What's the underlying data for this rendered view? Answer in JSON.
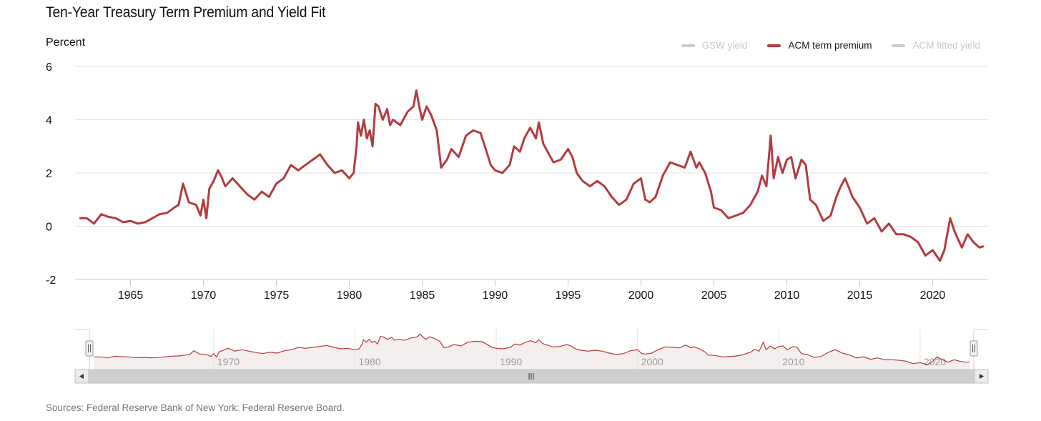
{
  "title": "Ten-Year Treasury Term Premium and Yield Fit",
  "y_unit": "Percent",
  "legend": [
    {
      "label": "GSW yield",
      "active": false,
      "color": "#cccccc"
    },
    {
      "label": "ACM term premium",
      "active": true,
      "color": "#b33b3f"
    },
    {
      "label": "ACM fitted yield",
      "active": false,
      "color": "#cccccc"
    }
  ],
  "source": "Sources: Federal Reserve Bank of New York: Federal Reserve Board.",
  "colors": {
    "series": "#b33b3f",
    "grid": "#e3e3e3",
    "axis": "#c6c9dc",
    "navigator_fill": "#f5eeee",
    "scroll_track": "#cfcfcf"
  },
  "chart_data": {
    "type": "line",
    "title": "Ten-Year Treasury Term Premium and Yield Fit",
    "ylabel": "Percent",
    "xlabel": "",
    "xlim": [
      1961.2,
      2023.8
    ],
    "ylim": [
      -2,
      6
    ],
    "yticks": [
      -2,
      0,
      2,
      4,
      6
    ],
    "ytick_labels": [
      "-2",
      "0",
      "2",
      "4",
      "6"
    ],
    "xticks": [
      1965,
      1970,
      1975,
      1980,
      1985,
      1990,
      1995,
      2000,
      2005,
      2010,
      2015,
      2020
    ],
    "xtick_labels": [
      "1965",
      "1970",
      "1975",
      "1980",
      "1985",
      "1990",
      "1995",
      "2000",
      "2005",
      "2010",
      "2015",
      "2020"
    ],
    "navigator_ticks": [
      1970,
      1980,
      1990,
      2000,
      2010,
      2020
    ],
    "navigator_tick_labels": [
      "1970",
      "1980",
      "1990",
      "2000",
      "2010",
      "2020"
    ],
    "series": [
      {
        "name": "ACM term premium",
        "points": [
          [
            1961.5,
            0.3
          ],
          [
            1962,
            0.3
          ],
          [
            1962.5,
            0.1
          ],
          [
            1963,
            0.45
          ],
          [
            1963.5,
            0.35
          ],
          [
            1964,
            0.3
          ],
          [
            1964.5,
            0.15
          ],
          [
            1965,
            0.2
          ],
          [
            1965.5,
            0.1
          ],
          [
            1966,
            0.15
          ],
          [
            1966.5,
            0.3
          ],
          [
            1967,
            0.45
          ],
          [
            1967.5,
            0.5
          ],
          [
            1968,
            0.7
          ],
          [
            1968.3,
            0.8
          ],
          [
            1968.6,
            1.6
          ],
          [
            1969,
            0.9
          ],
          [
            1969.5,
            0.8
          ],
          [
            1969.8,
            0.4
          ],
          [
            1970,
            1.0
          ],
          [
            1970.2,
            0.3
          ],
          [
            1970.4,
            1.4
          ],
          [
            1970.7,
            1.7
          ],
          [
            1971,
            2.1
          ],
          [
            1971.2,
            1.9
          ],
          [
            1971.5,
            1.5
          ],
          [
            1972,
            1.8
          ],
          [
            1972.5,
            1.5
          ],
          [
            1973,
            1.2
          ],
          [
            1973.5,
            1.0
          ],
          [
            1974,
            1.3
          ],
          [
            1974.5,
            1.1
          ],
          [
            1975,
            1.6
          ],
          [
            1975.5,
            1.8
          ],
          [
            1976,
            2.3
          ],
          [
            1976.5,
            2.1
          ],
          [
            1977,
            2.3
          ],
          [
            1977.5,
            2.5
          ],
          [
            1978,
            2.7
          ],
          [
            1978.5,
            2.3
          ],
          [
            1979,
            2.0
          ],
          [
            1979.5,
            2.1
          ],
          [
            1980,
            1.8
          ],
          [
            1980.3,
            2.0
          ],
          [
            1980.5,
            3.0
          ],
          [
            1980.6,
            3.9
          ],
          [
            1980.8,
            3.4
          ],
          [
            1981,
            4.0
          ],
          [
            1981.2,
            3.3
          ],
          [
            1981.4,
            3.6
          ],
          [
            1981.6,
            3.0
          ],
          [
            1981.8,
            4.6
          ],
          [
            1982,
            4.5
          ],
          [
            1982.3,
            4.0
          ],
          [
            1982.6,
            4.4
          ],
          [
            1982.8,
            3.8
          ],
          [
            1983,
            4.0
          ],
          [
            1983.5,
            3.8
          ],
          [
            1984,
            4.3
          ],
          [
            1984.4,
            4.5
          ],
          [
            1984.6,
            5.1
          ],
          [
            1984.8,
            4.5
          ],
          [
            1985,
            4.0
          ],
          [
            1985.3,
            4.5
          ],
          [
            1985.6,
            4.2
          ],
          [
            1986,
            3.6
          ],
          [
            1986.3,
            2.2
          ],
          [
            1986.7,
            2.5
          ],
          [
            1987,
            2.9
          ],
          [
            1987.5,
            2.6
          ],
          [
            1988,
            3.4
          ],
          [
            1988.5,
            3.6
          ],
          [
            1989,
            3.5
          ],
          [
            1989.3,
            3.0
          ],
          [
            1989.7,
            2.3
          ],
          [
            1990,
            2.1
          ],
          [
            1990.5,
            2.0
          ],
          [
            1991,
            2.3
          ],
          [
            1991.3,
            3.0
          ],
          [
            1991.7,
            2.8
          ],
          [
            1992,
            3.3
          ],
          [
            1992.4,
            3.7
          ],
          [
            1992.8,
            3.3
          ],
          [
            1993,
            3.9
          ],
          [
            1993.3,
            3.1
          ],
          [
            1993.6,
            2.8
          ],
          [
            1994,
            2.4
          ],
          [
            1994.5,
            2.5
          ],
          [
            1995,
            2.9
          ],
          [
            1995.3,
            2.6
          ],
          [
            1995.6,
            2.0
          ],
          [
            1996,
            1.7
          ],
          [
            1996.5,
            1.5
          ],
          [
            1997,
            1.7
          ],
          [
            1997.5,
            1.5
          ],
          [
            1998,
            1.1
          ],
          [
            1998.5,
            0.8
          ],
          [
            1999,
            1.0
          ],
          [
            1999.5,
            1.6
          ],
          [
            2000,
            1.8
          ],
          [
            2000.3,
            1.0
          ],
          [
            2000.6,
            0.9
          ],
          [
            2001,
            1.1
          ],
          [
            2001.5,
            1.9
          ],
          [
            2002,
            2.4
          ],
          [
            2002.5,
            2.3
          ],
          [
            2003,
            2.2
          ],
          [
            2003.4,
            2.8
          ],
          [
            2003.8,
            2.2
          ],
          [
            2004,
            2.4
          ],
          [
            2004.4,
            2.0
          ],
          [
            2004.8,
            1.3
          ],
          [
            2005,
            0.7
          ],
          [
            2005.5,
            0.6
          ],
          [
            2006,
            0.3
          ],
          [
            2006.5,
            0.4
          ],
          [
            2007,
            0.5
          ],
          [
            2007.5,
            0.8
          ],
          [
            2008,
            1.3
          ],
          [
            2008.3,
            1.9
          ],
          [
            2008.6,
            1.5
          ],
          [
            2008.9,
            3.4
          ],
          [
            2009.1,
            1.8
          ],
          [
            2009.4,
            2.6
          ],
          [
            2009.7,
            2.0
          ],
          [
            2010,
            2.5
          ],
          [
            2010.3,
            2.6
          ],
          [
            2010.6,
            1.8
          ],
          [
            2011,
            2.5
          ],
          [
            2011.3,
            2.3
          ],
          [
            2011.6,
            1.0
          ],
          [
            2012,
            0.8
          ],
          [
            2012.5,
            0.2
          ],
          [
            2013,
            0.4
          ],
          [
            2013.4,
            1.1
          ],
          [
            2013.7,
            1.5
          ],
          [
            2014,
            1.8
          ],
          [
            2014.5,
            1.1
          ],
          [
            2015,
            0.7
          ],
          [
            2015.5,
            0.1
          ],
          [
            2016,
            0.3
          ],
          [
            2016.5,
            -0.2
          ],
          [
            2017,
            0.1
          ],
          [
            2017.5,
            -0.3
          ],
          [
            2018,
            -0.3
          ],
          [
            2018.5,
            -0.4
          ],
          [
            2019,
            -0.6
          ],
          [
            2019.5,
            -1.1
          ],
          [
            2020,
            -0.9
          ],
          [
            2020.5,
            -1.3
          ],
          [
            2020.8,
            -0.9
          ],
          [
            2021.2,
            0.3
          ],
          [
            2021.5,
            -0.2
          ],
          [
            2022,
            -0.8
          ],
          [
            2022.4,
            -0.3
          ],
          [
            2022.8,
            -0.6
          ],
          [
            2023.2,
            -0.8
          ],
          [
            2023.5,
            -0.75
          ]
        ]
      }
    ]
  }
}
